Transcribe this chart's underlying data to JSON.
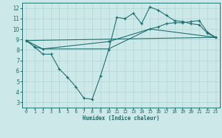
{
  "xlabel": "Humidex (Indice chaleur)",
  "bg_color": "#cce8e8",
  "grid_color": "#b0d4d4",
  "line_color": "#1a6b6b",
  "xlim": [
    -0.5,
    23.5
  ],
  "ylim": [
    2.5,
    12.5
  ],
  "xticks": [
    0,
    1,
    2,
    3,
    4,
    5,
    6,
    7,
    8,
    9,
    10,
    11,
    12,
    13,
    14,
    15,
    16,
    17,
    18,
    19,
    20,
    21,
    22,
    23
  ],
  "yticks": [
    3,
    4,
    5,
    6,
    7,
    8,
    9,
    10,
    11,
    12
  ],
  "line1_x": [
    0,
    1,
    2,
    3,
    4,
    5,
    6,
    7,
    8,
    9,
    10,
    11,
    12,
    13,
    14,
    15,
    16,
    17,
    18,
    19,
    20,
    21,
    22,
    23
  ],
  "line1_y": [
    8.9,
    8.3,
    7.6,
    7.6,
    6.2,
    5.4,
    4.5,
    3.4,
    3.3,
    5.5,
    8.0,
    11.1,
    11.0,
    11.5,
    10.5,
    12.1,
    11.8,
    11.3,
    10.8,
    10.7,
    10.5,
    10.4,
    9.6,
    9.2
  ],
  "line2_x": [
    0,
    1,
    2,
    10,
    15,
    16,
    17,
    18,
    19,
    20,
    21,
    22,
    23
  ],
  "line2_y": [
    8.9,
    8.3,
    8.1,
    8.8,
    10.0,
    10.2,
    10.5,
    10.6,
    10.6,
    10.7,
    10.8,
    9.7,
    9.2
  ],
  "line3_x": [
    0,
    23
  ],
  "line3_y": [
    8.9,
    9.2
  ],
  "line4_x": [
    0,
    2,
    10,
    15,
    23
  ],
  "line4_y": [
    8.9,
    8.1,
    8.1,
    10.0,
    9.2
  ]
}
